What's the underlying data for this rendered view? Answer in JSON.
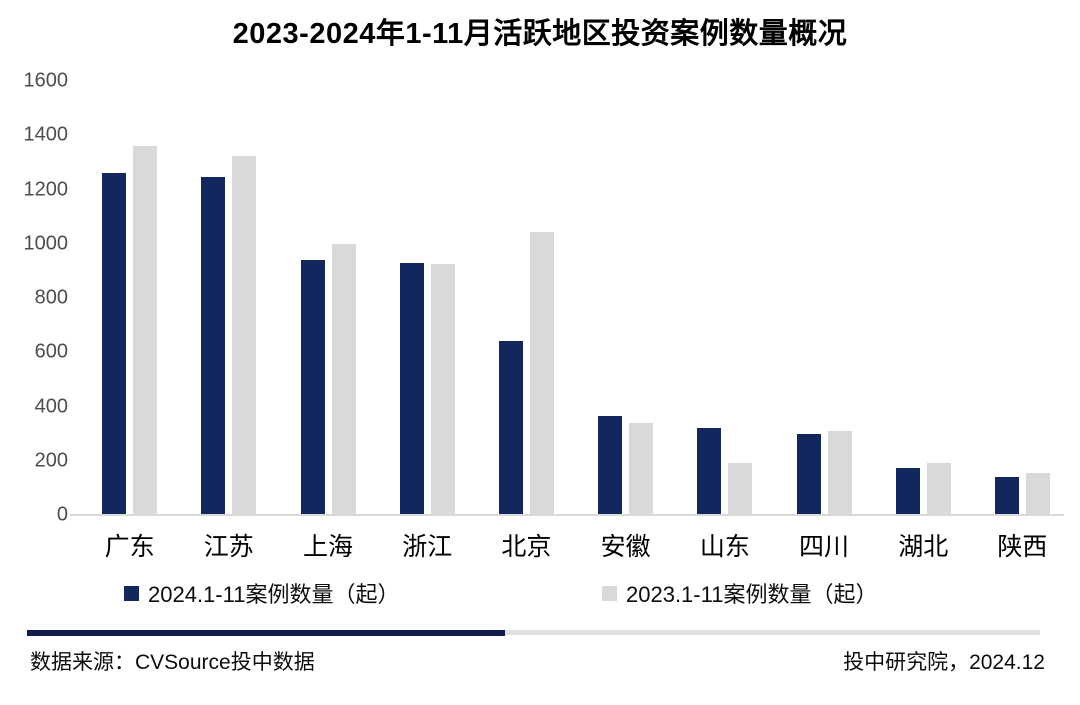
{
  "title": "2023-2024年1-11月活跃地区投资案例数量概况",
  "chart_data": {
    "type": "bar",
    "title": "2023-2024年1-11月活跃地区投资案例数量概况",
    "categories": [
      "广东",
      "江苏",
      "上海",
      "浙江",
      "北京",
      "安徽",
      "山东",
      "四川",
      "湖北",
      "陕西"
    ],
    "series": [
      {
        "name": "2024.1-11案例数量（起）",
        "color": "#12275e",
        "values": [
          1260,
          1245,
          940,
          930,
          640,
          365,
          320,
          300,
          175,
          140
        ]
      },
      {
        "name": "2023.1-11案例数量（起）",
        "color": "#d9d9d9",
        "values": [
          1360,
          1325,
          1000,
          925,
          1045,
          340,
          190,
          310,
          190,
          155
        ]
      }
    ],
    "xlabel": "",
    "ylabel": "",
    "ylim": [
      0,
      1600
    ],
    "ytick_step": 200,
    "grid": false,
    "legend_position": "bottom"
  },
  "footer": {
    "source": "数据来源：CVSource投中数据",
    "credit": "投中研究院，2024.12"
  },
  "colors": {
    "bar_2024": "#12275e",
    "bar_2023": "#d9d9d9",
    "axis_line": "#d9d9d9",
    "axis_label": "#4d4d4d",
    "divider_navy": "#111c4e",
    "divider_gray": "#e0e0e0"
  }
}
